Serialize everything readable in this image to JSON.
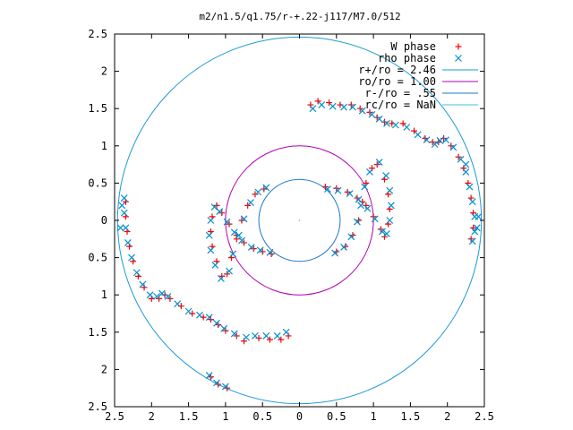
{
  "chart_data": {
    "type": "scatter",
    "title": "m2/n1.5/q1.75/r-+.22-j117/M7.0/512",
    "xlim": [
      -2.5,
      2.5
    ],
    "ylim": [
      -2.5,
      2.5
    ],
    "x_ticks": [
      {
        "value": -2.5,
        "label": "2.5"
      },
      {
        "value": -2,
        "label": "2"
      },
      {
        "value": -1.5,
        "label": "1.5"
      },
      {
        "value": -1,
        "label": "1"
      },
      {
        "value": -0.5,
        "label": "0.5"
      },
      {
        "value": 0,
        "label": "0"
      },
      {
        "value": 0.5,
        "label": "0.5"
      },
      {
        "value": 1,
        "label": "1"
      },
      {
        "value": 1.5,
        "label": "1.5"
      },
      {
        "value": 2,
        "label": "2"
      },
      {
        "value": 2.5,
        "label": "2.5"
      }
    ],
    "y_ticks": [
      {
        "value": 2.5,
        "label": "2.5"
      },
      {
        "value": 2,
        "label": "2"
      },
      {
        "value": 1.5,
        "label": "1.5"
      },
      {
        "value": 1,
        "label": "1"
      },
      {
        "value": 0.5,
        "label": "0.5"
      },
      {
        "value": 0,
        "label": "0"
      },
      {
        "value": -0.5,
        "label": "0.5"
      },
      {
        "value": -1,
        "label": "1"
      },
      {
        "value": -1.5,
        "label": "1.5"
      },
      {
        "value": -2,
        "label": "2"
      },
      {
        "value": -2.5,
        "label": "2.5"
      }
    ],
    "legend_position": "top-right",
    "legend": [
      {
        "label": "W phase",
        "kind": "plus",
        "color": "#ff0000"
      },
      {
        "label": "rho phase",
        "kind": "cross",
        "color": "#0090d0"
      },
      {
        "label": "r+/ro = 2.46",
        "kind": "line",
        "color": "#1e9ad6"
      },
      {
        "label": "ro/ro = 1.00",
        "kind": "line",
        "color": "#b000b0"
      },
      {
        "label": "r-/ro = .55",
        "kind": "line",
        "color": "#1e78c8"
      },
      {
        "label": "rc/ro = NaN",
        "kind": "line",
        "color": "#40c0d8"
      }
    ],
    "circles": [
      {
        "name": "r+/ro = 2.46",
        "radius": 2.46,
        "color": "#1e9ad6"
      },
      {
        "name": "ro/ro = 1.00",
        "radius": 1.0,
        "color": "#b000b0"
      },
      {
        "name": "r-/ro = .55",
        "radius": 0.55,
        "color": "#1e78c8"
      }
    ],
    "series": [
      {
        "name": "W phase",
        "marker": "plus",
        "color": "#ff0000",
        "points": [
          [
            0.15,
            1.55
          ],
          [
            0.25,
            1.6
          ],
          [
            0.4,
            1.58
          ],
          [
            0.55,
            1.55
          ],
          [
            0.7,
            1.55
          ],
          [
            0.82,
            1.5
          ],
          [
            0.95,
            1.45
          ],
          [
            1.05,
            1.38
          ],
          [
            1.15,
            1.32
          ],
          [
            1.25,
            1.3
          ],
          [
            1.4,
            1.3
          ],
          [
            1.55,
            1.2
          ],
          [
            1.7,
            1.1
          ],
          [
            1.8,
            1.05
          ],
          [
            1.88,
            1.05
          ],
          [
            1.95,
            1.1
          ],
          [
            2.05,
            1.0
          ],
          [
            2.15,
            0.85
          ],
          [
            2.22,
            0.7
          ],
          [
            2.28,
            0.5
          ],
          [
            2.32,
            0.3
          ],
          [
            2.35,
            0.1
          ],
          [
            2.35,
            -0.1
          ],
          [
            2.32,
            -0.25
          ],
          [
            0.35,
            0.45
          ],
          [
            0.5,
            0.43
          ],
          [
            0.65,
            0.38
          ],
          [
            0.78,
            0.3
          ],
          [
            0.9,
            0.2
          ],
          [
            1.0,
            0.05
          ],
          [
            1.1,
            -0.12
          ],
          [
            1.15,
            -0.22
          ],
          [
            1.2,
            -0.05
          ],
          [
            1.22,
            0.15
          ],
          [
            1.2,
            0.35
          ],
          [
            1.15,
            0.55
          ],
          [
            1.05,
            0.75
          ],
          [
            0.98,
            0.7
          ],
          [
            0.9,
            0.5
          ],
          [
            0.85,
            0.25
          ],
          [
            0.8,
            0.0
          ],
          [
            0.72,
            -0.2
          ],
          [
            0.62,
            -0.35
          ],
          [
            0.5,
            -0.42
          ],
          [
            -0.15,
            -1.55
          ],
          [
            -0.25,
            -1.6
          ],
          [
            -0.4,
            -1.6
          ],
          [
            -0.55,
            -1.58
          ],
          [
            -0.75,
            -1.62
          ],
          [
            -0.85,
            -1.55
          ],
          [
            -1.0,
            -1.48
          ],
          [
            -1.1,
            -1.4
          ],
          [
            -1.2,
            -1.33
          ],
          [
            -1.3,
            -1.3
          ],
          [
            -1.45,
            -1.25
          ],
          [
            -1.6,
            -1.15
          ],
          [
            -1.75,
            -1.05
          ],
          [
            -1.82,
            -1.0
          ],
          [
            -1.9,
            -1.05
          ],
          [
            -2.0,
            -1.05
          ],
          [
            -2.1,
            -0.9
          ],
          [
            -2.18,
            -0.75
          ],
          [
            -2.25,
            -0.55
          ],
          [
            -2.3,
            -0.35
          ],
          [
            -2.33,
            -0.15
          ],
          [
            -2.35,
            0.05
          ],
          [
            -2.35,
            0.25
          ],
          [
            -0.38,
            -0.45
          ],
          [
            -0.5,
            -0.42
          ],
          [
            -0.62,
            -0.38
          ],
          [
            -0.75,
            -0.3
          ],
          [
            -0.85,
            -0.2
          ],
          [
            -0.95,
            -0.05
          ],
          [
            -1.05,
            0.1
          ],
          [
            -1.12,
            0.2
          ],
          [
            -1.18,
            0.05
          ],
          [
            -1.2,
            -0.15
          ],
          [
            -1.18,
            -0.35
          ],
          [
            -1.12,
            -0.55
          ],
          [
            -1.05,
            -0.75
          ],
          [
            -0.98,
            -0.72
          ],
          [
            -0.92,
            -0.5
          ],
          [
            -0.85,
            -0.25
          ],
          [
            -0.78,
            0.0
          ],
          [
            -0.7,
            0.2
          ],
          [
            -0.6,
            0.35
          ],
          [
            -0.48,
            0.42
          ],
          [
            -1.2,
            -2.1
          ],
          [
            -1.1,
            -2.2
          ],
          [
            -0.98,
            -2.25
          ]
        ]
      },
      {
        "name": "rho phase",
        "marker": "cross",
        "color": "#0090d0",
        "points": [
          [
            0.18,
            1.5
          ],
          [
            0.3,
            1.55
          ],
          [
            0.45,
            1.53
          ],
          [
            0.6,
            1.52
          ],
          [
            0.72,
            1.52
          ],
          [
            0.85,
            1.47
          ],
          [
            0.98,
            1.42
          ],
          [
            1.08,
            1.36
          ],
          [
            1.18,
            1.3
          ],
          [
            1.3,
            1.28
          ],
          [
            1.45,
            1.25
          ],
          [
            1.6,
            1.15
          ],
          [
            1.72,
            1.08
          ],
          [
            1.83,
            1.02
          ],
          [
            1.9,
            1.07
          ],
          [
            1.98,
            1.08
          ],
          [
            2.08,
            0.98
          ],
          [
            2.18,
            0.82
          ],
          [
            2.25,
            0.65
          ],
          [
            2.3,
            0.45
          ],
          [
            2.34,
            0.25
          ],
          [
            2.37,
            0.05
          ],
          [
            2.37,
            -0.15
          ],
          [
            2.34,
            -0.28
          ],
          [
            0.38,
            0.42
          ],
          [
            0.52,
            0.4
          ],
          [
            0.68,
            0.36
          ],
          [
            0.8,
            0.28
          ],
          [
            0.92,
            0.16
          ],
          [
            1.02,
            0.02
          ],
          [
            1.12,
            -0.15
          ],
          [
            1.18,
            -0.18
          ],
          [
            1.22,
            0.0
          ],
          [
            1.24,
            0.2
          ],
          [
            1.22,
            0.4
          ],
          [
            1.17,
            0.6
          ],
          [
            1.08,
            0.78
          ],
          [
            0.95,
            0.65
          ],
          [
            0.88,
            0.45
          ],
          [
            0.83,
            0.2
          ],
          [
            0.78,
            -0.02
          ],
          [
            0.7,
            -0.22
          ],
          [
            0.6,
            -0.36
          ],
          [
            0.48,
            -0.44
          ],
          [
            -0.18,
            -1.5
          ],
          [
            -0.3,
            -1.55
          ],
          [
            -0.45,
            -1.55
          ],
          [
            -0.6,
            -1.55
          ],
          [
            -0.72,
            -1.57
          ],
          [
            -0.88,
            -1.52
          ],
          [
            -1.02,
            -1.45
          ],
          [
            -1.12,
            -1.38
          ],
          [
            -1.22,
            -1.3
          ],
          [
            -1.35,
            -1.27
          ],
          [
            -1.5,
            -1.22
          ],
          [
            -1.65,
            -1.12
          ],
          [
            -1.78,
            -1.02
          ],
          [
            -1.86,
            -0.98
          ],
          [
            -1.93,
            -1.02
          ],
          [
            -2.02,
            -1.0
          ],
          [
            -2.12,
            -0.86
          ],
          [
            -2.2,
            -0.7
          ],
          [
            -2.27,
            -0.5
          ],
          [
            -2.32,
            -0.3
          ],
          [
            -2.35,
            -0.1
          ],
          [
            -2.37,
            0.1
          ],
          [
            -2.37,
            0.3
          ],
          [
            -0.4,
            -0.43
          ],
          [
            -0.53,
            -0.4
          ],
          [
            -0.65,
            -0.36
          ],
          [
            -0.78,
            -0.27
          ],
          [
            -0.88,
            -0.16
          ],
          [
            -0.98,
            -0.02
          ],
          [
            -1.08,
            0.12
          ],
          [
            -1.15,
            0.18
          ],
          [
            -1.2,
            0.0
          ],
          [
            -1.22,
            -0.2
          ],
          [
            -1.2,
            -0.4
          ],
          [
            -1.14,
            -0.6
          ],
          [
            -1.06,
            -0.78
          ],
          [
            -0.95,
            -0.68
          ],
          [
            -0.9,
            -0.45
          ],
          [
            -0.82,
            -0.2
          ],
          [
            -0.75,
            0.02
          ],
          [
            -0.66,
            0.24
          ],
          [
            -0.56,
            0.38
          ],
          [
            -0.45,
            0.44
          ],
          [
            -1.22,
            -2.08
          ],
          [
            -1.12,
            -2.18
          ],
          [
            -1.0,
            -2.23
          ],
          [
            -2.4,
            0.2
          ],
          [
            -2.42,
            -0.1
          ],
          [
            2.4,
            -0.1
          ],
          [
            2.42,
            0.05
          ],
          [
            2.25,
            0.75
          ]
        ]
      }
    ]
  }
}
